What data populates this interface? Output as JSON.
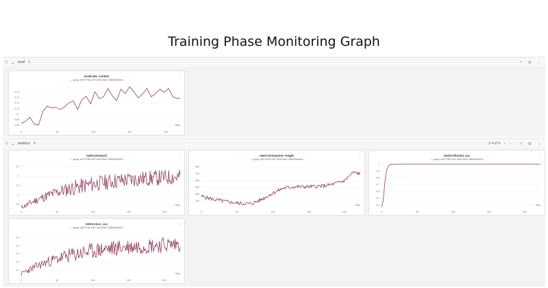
{
  "page": {
    "title": "Training Phase Monitoring Graph"
  },
  "sections": {
    "eval": {
      "name": "eval",
      "count": "1"
    },
    "metrics": {
      "name": "metrics",
      "count": "4",
      "pager": "1-4 of 4"
    }
  },
  "icons": {
    "drag": "drag-handle-icon",
    "collapse": "chevron-down-icon",
    "search": "search-icon",
    "settings": "gear-icon",
    "more": "kebab-icon",
    "prev": "chevron-left-icon",
    "next": "chevron-right-icon"
  },
  "accent_color": "#8b3a5c",
  "legend_text": "group: MATTHW-1HP-h152-69a7-45f0208c5e1b",
  "step_label": "Step",
  "chart_data": [
    {
      "id": "eval_code_content",
      "type": "line",
      "title": "eval/code_content",
      "xlabel": "Step",
      "xticks": [
        0,
        50,
        100,
        150,
        200
      ],
      "yticks": [
        "0.08",
        "0.1",
        "0.12",
        "0.14"
      ],
      "yticks_extra": [
        "0.09",
        "0.11",
        "0.13"
      ],
      "xlim": [
        0,
        220
      ],
      "ylim": [
        0.075,
        0.155
      ],
      "x": [
        0,
        6,
        12,
        18,
        24,
        30,
        36,
        42,
        48,
        54,
        60,
        66,
        72,
        78,
        84,
        90,
        96,
        102,
        108,
        114,
        120,
        126,
        132,
        138,
        144,
        150,
        156,
        162,
        168,
        174,
        180,
        186,
        192,
        198,
        204,
        210,
        216,
        220
      ],
      "y": [
        0.083,
        0.087,
        0.094,
        0.082,
        0.08,
        0.105,
        0.114,
        0.111,
        0.112,
        0.108,
        0.113,
        0.12,
        0.124,
        0.108,
        0.126,
        0.132,
        0.118,
        0.14,
        0.128,
        0.131,
        0.146,
        0.133,
        0.124,
        0.145,
        0.137,
        0.149,
        0.14,
        0.129,
        0.136,
        0.146,
        0.131,
        0.137,
        0.145,
        0.139,
        0.146,
        0.131,
        0.128,
        0.129
      ]
    },
    {
      "id": "metrics_reward",
      "type": "line",
      "title": "metrics/reward",
      "xlabel": "Step",
      "xticks": [
        0,
        50,
        100,
        150,
        200
      ],
      "yticks": [
        "0.5",
        "1",
        "1.5",
        "2",
        "2.5"
      ],
      "xlim": [
        0,
        222
      ],
      "ylim": [
        0.3,
        2.7
      ],
      "noisy": {
        "start": 0.3,
        "end": 1.95,
        "amp": 0.42,
        "seed": 11,
        "n": 222,
        "rise": 0.35
      }
    },
    {
      "id": "metrics_response_length",
      "type": "line",
      "title": "metrics/response_length",
      "xlabel": "Step",
      "xticks": [
        0,
        50,
        100,
        150,
        200
      ],
      "yticks": [
        "300",
        "400",
        "500",
        "600",
        "700",
        "800"
      ],
      "xlim": [
        0,
        222
      ],
      "ylim": [
        200,
        860
      ],
      "anchors": [
        [
          0,
          370
        ],
        [
          15,
          330
        ],
        [
          30,
          300
        ],
        [
          50,
          270
        ],
        [
          70,
          260
        ],
        [
          85,
          330
        ],
        [
          100,
          420
        ],
        [
          115,
          490
        ],
        [
          130,
          510
        ],
        [
          150,
          510
        ],
        [
          170,
          520
        ],
        [
          185,
          550
        ],
        [
          200,
          600
        ],
        [
          212,
          720
        ],
        [
          222,
          700
        ]
      ],
      "noise": {
        "amp": 28,
        "seed": 5,
        "n": 222
      }
    },
    {
      "id": "metrics_format_acc",
      "type": "line",
      "title": "metrics/format_acc",
      "xlabel": "Step",
      "xticks": [
        0,
        50,
        100,
        150,
        200
      ],
      "yticks": [
        "0.4",
        "0.5",
        "0.6",
        "0.7",
        "0.8",
        "0.9",
        "1"
      ],
      "xlim": [
        0,
        222
      ],
      "ylim": [
        0.36,
        1.02
      ],
      "x": [
        0,
        1,
        2,
        3,
        4,
        5,
        6,
        7,
        8,
        9,
        10,
        11,
        12,
        13,
        14,
        15,
        16,
        18,
        20,
        24,
        30,
        40,
        60,
        80,
        100,
        120,
        140,
        160,
        180,
        200,
        222
      ],
      "y": [
        0.37,
        0.4,
        0.45,
        0.55,
        0.66,
        0.76,
        0.84,
        0.9,
        0.94,
        0.96,
        0.975,
        0.985,
        0.99,
        0.993,
        0.995,
        0.996,
        0.997,
        0.998,
        0.999,
        0.999,
        1,
        1,
        1,
        1,
        1,
        1,
        1,
        1,
        1,
        1,
        1
      ]
    },
    {
      "id": "metrics_acc_acc",
      "type": "line",
      "title": "metrics/acc_acc",
      "xlabel": "Step",
      "xticks": [
        0,
        50,
        100,
        150,
        200
      ],
      "yticks": [
        "0.1",
        "0.2",
        "0.3",
        "0.4",
        "0.5"
      ],
      "xlim": [
        0,
        222
      ],
      "ylim": [
        0.02,
        0.58
      ],
      "noisy": {
        "start": 0.05,
        "end": 0.42,
        "amp": 0.1,
        "seed": 23,
        "n": 222,
        "rise": 0.35
      }
    }
  ]
}
